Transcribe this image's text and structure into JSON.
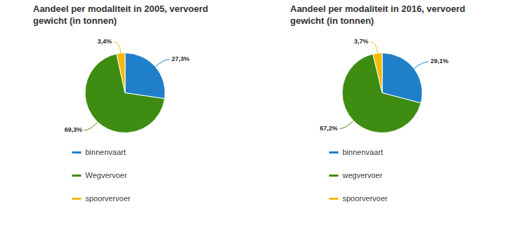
{
  "chart_data": [
    {
      "type": "pie",
      "title": "Aandeel per modaliteit in 2005, vervoerd gewicht (in tonnen)",
      "categories": [
        "binnenvaart",
        "Wegvervoer",
        "spoorvervoer"
      ],
      "values": [
        27.3,
        69.3,
        3.4
      ],
      "value_labels": [
        "27,3%",
        "69,3%",
        "3,4%"
      ],
      "colors": [
        "#1f80c9",
        "#3e8c12",
        "#f6b90a"
      ],
      "data_labels": true,
      "legend": "bottom"
    },
    {
      "type": "pie",
      "title": "Aandeel per modaliteit in 2016, vervoerd gewicht (in tonnen)",
      "categories": [
        "binnenvaart",
        "wegvervoer",
        "spoorvervoer"
      ],
      "values": [
        29.1,
        67.2,
        3.7
      ],
      "value_labels": [
        "29,1%",
        "67,2%",
        "3,7%"
      ],
      "colors": [
        "#1f80c9",
        "#3e8c12",
        "#f6b90a"
      ],
      "data_labels": true,
      "legend": "bottom"
    }
  ]
}
